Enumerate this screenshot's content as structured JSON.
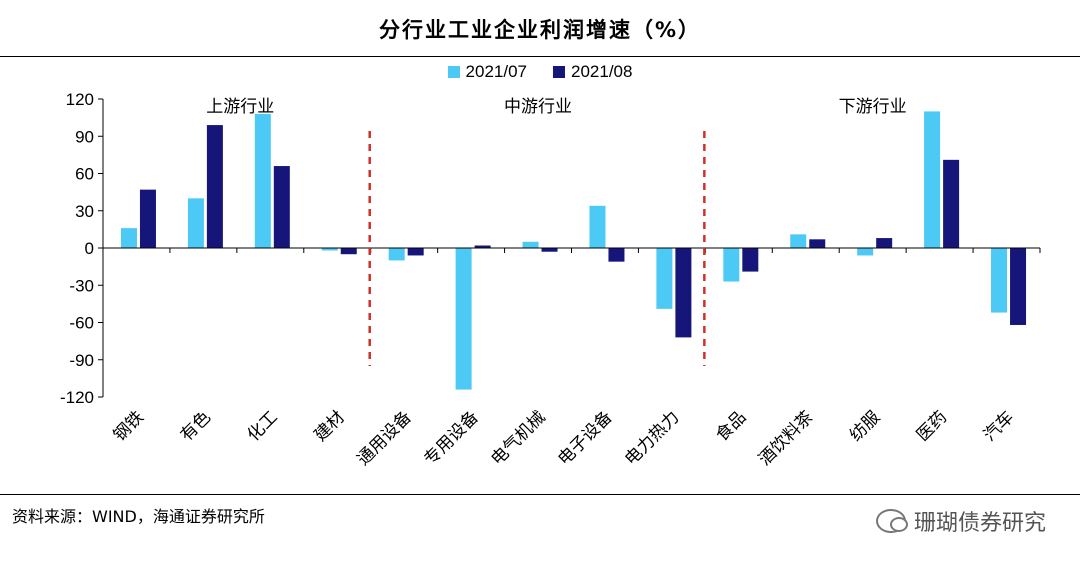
{
  "title": "分行业工业企业利润增速（%）",
  "source": "资料来源：WIND，海通证券研究所",
  "watermark": "珊瑚债券研究",
  "colors": {
    "s1": "#4cc9f5",
    "s2": "#16167a",
    "divider": "#d0302a"
  },
  "chart_data": {
    "type": "bar",
    "title": "分行业工业企业利润增速（%）",
    "xlabel": "",
    "ylabel": "",
    "ylim": [
      -120,
      120
    ],
    "yticks": [
      120,
      90,
      60,
      30,
      0,
      -30,
      -60,
      -90,
      -120
    ],
    "legend_position": "top-center",
    "categories": [
      "钢铁",
      "有色",
      "化工",
      "建材",
      "通用设备",
      "专用设备",
      "电气机械",
      "电子设备",
      "电力热力",
      "食品",
      "酒饮料茶",
      "纺服",
      "医药",
      "汽车"
    ],
    "series": [
      {
        "name": "2021/07",
        "values": [
          16,
          40,
          108,
          -2,
          -10,
          -114,
          5,
          34,
          -49,
          -27,
          11,
          -6,
          110,
          -52
        ]
      },
      {
        "name": "2021/08",
        "values": [
          47,
          99,
          66,
          -5,
          -6,
          2,
          -3,
          -11,
          -72,
          -19,
          7,
          8,
          71,
          -62
        ]
      }
    ],
    "groups": [
      {
        "label": "上游行业"
      },
      {
        "label": "中游行业"
      },
      {
        "label": "下游行业"
      }
    ]
  }
}
